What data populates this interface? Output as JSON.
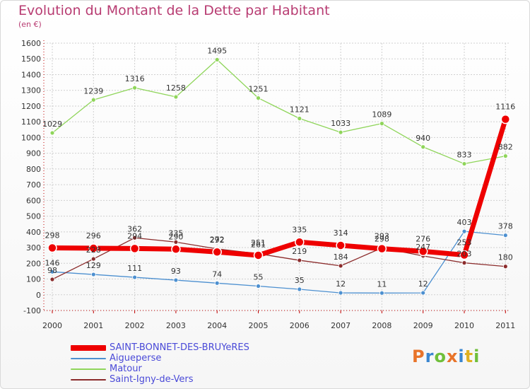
{
  "title": "Evolution du Montant de la Dette par Habitant",
  "subtitle": "(en €)",
  "logo_text": "Proxiti",
  "colors": {
    "title": "#b83c72",
    "axis_text": "#333333",
    "legend_text": "#4a4ad8",
    "grid": "#d0d0d0",
    "axis": "#c00000"
  },
  "chart_data": {
    "type": "line",
    "x": [
      2000,
      2001,
      2002,
      2003,
      2004,
      2005,
      2006,
      2007,
      2008,
      2009,
      2010,
      2011
    ],
    "ylim": [
      -100,
      1600
    ],
    "ytick_step": 100,
    "grid": true,
    "legend_placement": "bottom-left",
    "series": [
      {
        "name": "SAINT-BONNET-DES-BRUYeRES",
        "color": "#ee0000",
        "values": [
          298,
          296,
          294,
          290,
          272,
          251,
          335,
          314,
          293,
          276,
          253,
          1116
        ],
        "labels": [
          "298",
          "296",
          "294",
          "290",
          "272",
          "251",
          "335",
          "314",
          "293",
          "276",
          "253",
          "1116"
        ]
      },
      {
        "name": "Aigueperse",
        "color": "#4d90d0",
        "values": [
          146,
          129,
          111,
          93,
          74,
          55,
          35,
          12,
          11,
          12,
          403,
          378
        ],
        "labels": [
          "146",
          "129",
          "111",
          "93",
          "74",
          "55",
          "35",
          "12",
          "11",
          "12",
          "403",
          "378"
        ]
      },
      {
        "name": "Matour",
        "color": "#8fd55a",
        "values": [
          1029,
          1239,
          1316,
          1258,
          1495,
          1251,
          1121,
          1033,
          1089,
          940,
          833,
          882
        ],
        "labels": [
          "1029",
          "1239",
          "1316",
          "1258",
          "1495",
          "1251",
          "1121",
          "1033",
          "1089",
          "940",
          "833",
          "882"
        ]
      },
      {
        "name": "Saint-Igny-de-Vers",
        "color": "#8b2b2b",
        "values": [
          98,
          228,
          362,
          335,
          292,
          261,
          219,
          184,
          298,
          247,
          203,
          180
        ],
        "labels": [
          "98",
          "228",
          "362",
          "335",
          "292",
          "261",
          "219",
          "184",
          "298",
          "247",
          "203",
          "180"
        ]
      }
    ]
  }
}
